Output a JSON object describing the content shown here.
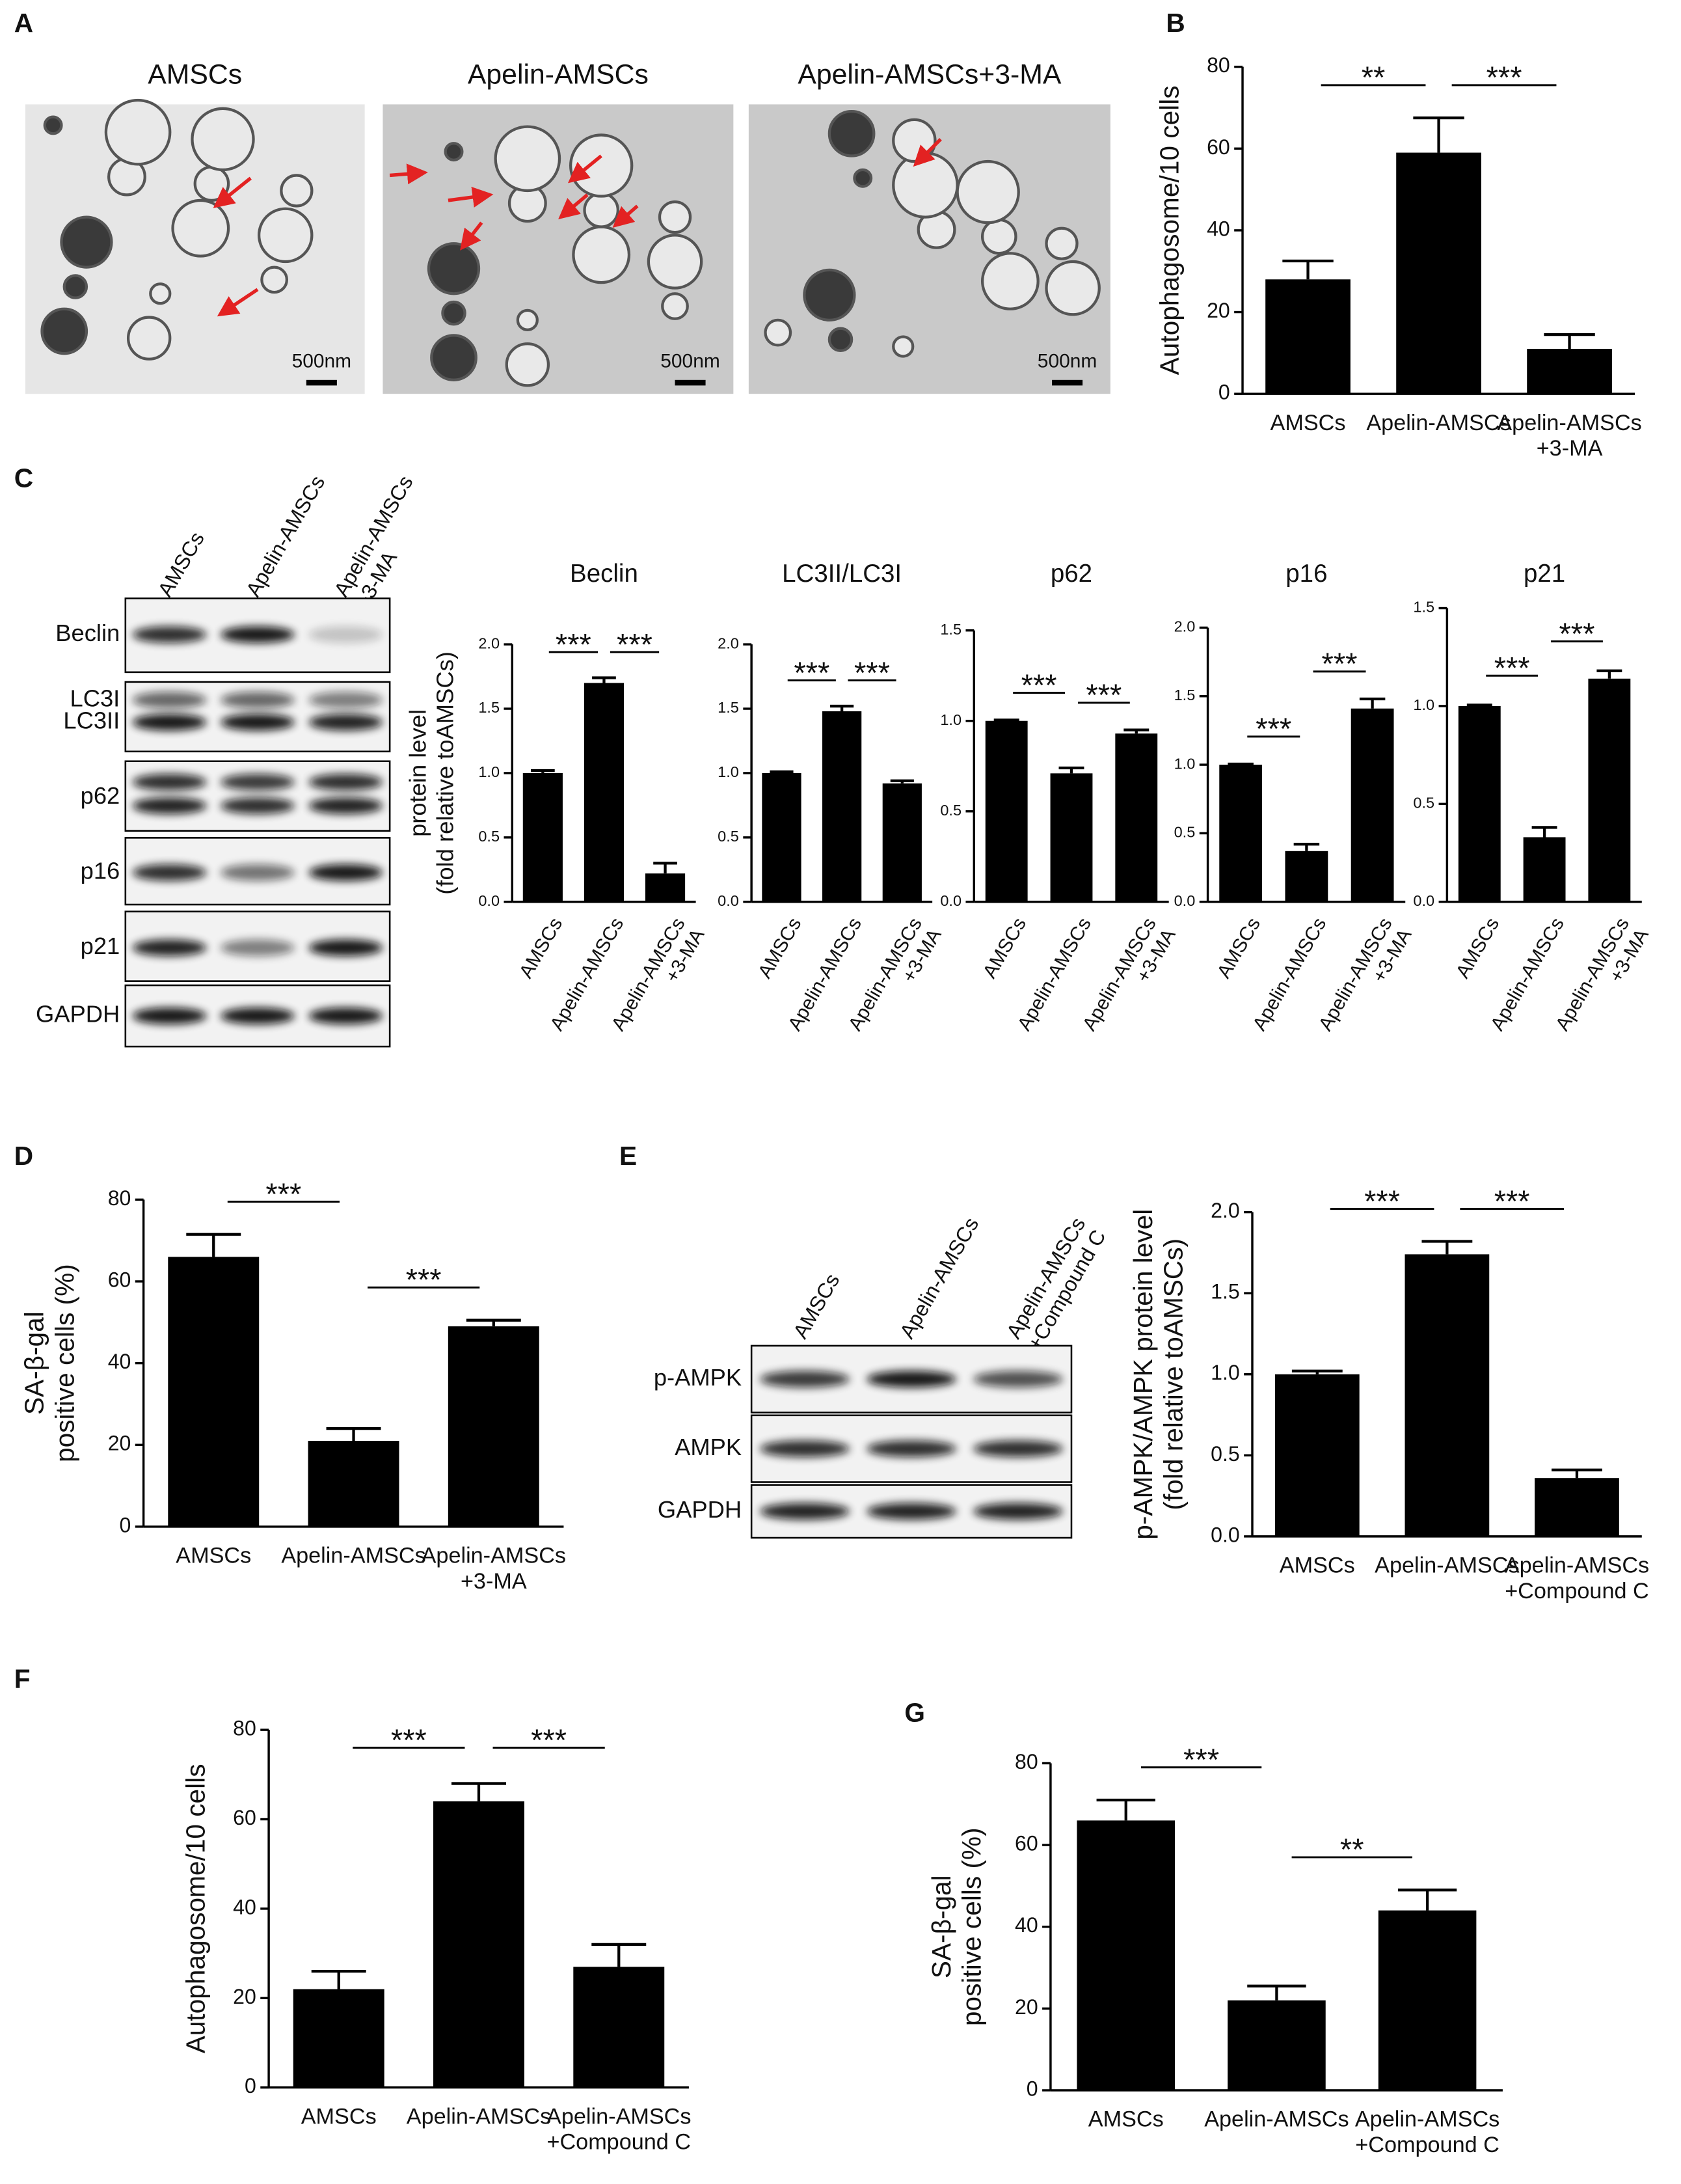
{
  "panel_labels": [
    "A",
    "B",
    "C",
    "D",
    "E",
    "F",
    "G"
  ],
  "micrographs": {
    "titles": [
      "AMSCs",
      "Apelin-AMSCs",
      "Apelin-AMSCs+3-MA"
    ],
    "scale_bar": "500nm"
  },
  "blot_c": {
    "lanes": [
      "AMSCs",
      "Apelin-AMSCs",
      "Apelin-AMSCs\n+3-MA"
    ],
    "rows": [
      "Beclin",
      "LC3I",
      "LC3II",
      "p62",
      "p16",
      "p21",
      "GAPDH"
    ]
  },
  "blot_e": {
    "lanes": [
      "AMSCs",
      "Apelin-AMSCs",
      "Apelin-AMSCs\n+Compound C"
    ],
    "rows": [
      "p-AMPK",
      "AMPK",
      "GAPDH"
    ]
  },
  "chart_data": [
    {
      "type": "bar",
      "ylabel": "Autophagosome/10 cells",
      "categories": [
        "AMSCs",
        "Apelin-AMSCs",
        "Apelin-AMSCs\n+3-MA"
      ],
      "values": [
        28,
        59,
        11
      ],
      "errors": [
        4.5,
        8.5,
        3.5
      ],
      "color": "#000000",
      "ylim": [
        0,
        80
      ],
      "yticks": [
        0,
        20,
        40,
        60,
        80
      ],
      "annotations": [
        "**",
        "***"
      ]
    },
    {
      "type": "bar",
      "title": "Beclin",
      "ylabel": "protein level\n(fold relative toAMSCs)",
      "categories": [
        "AMSCs",
        "Apelin-AMSCs",
        "Apelin-AMSCs\n+3-MA"
      ],
      "values": [
        1.0,
        1.7,
        0.22
      ],
      "errors": [
        0.02,
        0.04,
        0.08
      ],
      "color": "#000000",
      "ylim": [
        0,
        2
      ],
      "yticks": [
        {
          "value": 0,
          "label": "0.0"
        },
        {
          "value": 0.5,
          "label": "0.5"
        },
        {
          "value": 1,
          "label": "1.0"
        },
        {
          "value": 1.5,
          "label": "1.5"
        },
        {
          "value": 2,
          "label": "2.0"
        }
      ],
      "annotations": [
        "***",
        "***"
      ]
    },
    {
      "type": "bar",
      "title": "LC3II/LC3I",
      "categories": [
        "AMSCs",
        "Apelin-AMSCs",
        "Apelin-AMSCs\n+3-MA"
      ],
      "values": [
        1.0,
        1.48,
        0.92
      ],
      "errors": [
        0.01,
        0.04,
        0.02
      ],
      "color": "#000000",
      "ylim": [
        0,
        2
      ],
      "yticks": [
        {
          "value": 0,
          "label": "0.0"
        },
        {
          "value": 0.5,
          "label": "0.5"
        },
        {
          "value": 1,
          "label": "1.0"
        },
        {
          "value": 1.5,
          "label": "1.5"
        },
        {
          "value": 2,
          "label": "2.0"
        }
      ],
      "annotations": [
        "***",
        "***"
      ]
    },
    {
      "type": "bar",
      "title": "p62",
      "categories": [
        "AMSCs",
        "Apelin-AMSCs",
        "Apelin-AMSCs\n+3-MA"
      ],
      "values": [
        1.0,
        0.71,
        0.93
      ],
      "errors": [
        0.005,
        0.03,
        0.02
      ],
      "color": "#000000",
      "ylim": [
        0,
        1.5
      ],
      "yticks": [
        {
          "value": 0,
          "label": "0.0"
        },
        {
          "value": 0.5,
          "label": "0.5"
        },
        {
          "value": 1,
          "label": "1.0"
        },
        {
          "value": 1.5,
          "label": "1.5"
        }
      ],
      "annotations": [
        "***",
        "***"
      ]
    },
    {
      "type": "bar",
      "title": "p16",
      "categories": [
        "AMSCs",
        "Apelin-AMSCs",
        "Apelin-AMSCs\n+3-MA"
      ],
      "values": [
        1.0,
        0.37,
        1.41
      ],
      "errors": [
        0.005,
        0.05,
        0.07
      ],
      "color": "#000000",
      "ylim": [
        0,
        2
      ],
      "yticks": [
        {
          "value": 0,
          "label": "0.0"
        },
        {
          "value": 0.5,
          "label": "0.5"
        },
        {
          "value": 1,
          "label": "1.0"
        },
        {
          "value": 1.5,
          "label": "1.5"
        },
        {
          "value": 2,
          "label": "2.0"
        }
      ],
      "annotations": [
        "***",
        "***"
      ]
    },
    {
      "type": "bar",
      "title": "p21",
      "categories": [
        "AMSCs",
        "Apelin-AMSCs",
        "Apelin-AMSCs\n+3-MA"
      ],
      "values": [
        1.0,
        0.33,
        1.14
      ],
      "errors": [
        0.005,
        0.05,
        0.04
      ],
      "color": "#000000",
      "ylim": [
        0,
        1.5
      ],
      "yticks": [
        {
          "value": 0,
          "label": "0.0"
        },
        {
          "value": 0.5,
          "label": "0.5"
        },
        {
          "value": 1,
          "label": "1.0"
        },
        {
          "value": 1.5,
          "label": "1.5"
        }
      ],
      "annotations": [
        "***",
        "***"
      ]
    },
    {
      "type": "bar",
      "ylabel": "SA-β-gal\npositive cells (%)",
      "categories": [
        "AMSCs",
        "Apelin-AMSCs",
        "Apelin-AMSCs\n+3-MA"
      ],
      "values": [
        66,
        21,
        49
      ],
      "errors": [
        5.5,
        3,
        1.5
      ],
      "color": "#000000",
      "ylim": [
        0,
        80
      ],
      "yticks": [
        0,
        20,
        40,
        60,
        80
      ],
      "annotations": [
        "***",
        "***"
      ]
    },
    {
      "type": "bar",
      "ylabel": "p-AMPK/AMPK protein level\n(fold relative toAMSCs)",
      "categories": [
        "AMSCs",
        "Apelin-AMSCs",
        "Apelin-AMSCs\n+Compound C"
      ],
      "values": [
        1.0,
        1.74,
        0.36
      ],
      "errors": [
        0.02,
        0.08,
        0.05
      ],
      "color": "#000000",
      "ylim": [
        0,
        2
      ],
      "yticks": [
        {
          "value": 0,
          "label": "0.0"
        },
        {
          "value": 0.5,
          "label": "0.5"
        },
        {
          "value": 1,
          "label": "1.0"
        },
        {
          "value": 1.5,
          "label": "1.5"
        },
        {
          "value": 2,
          "label": "2.0"
        }
      ],
      "annotations": [
        "***",
        "***"
      ]
    },
    {
      "type": "bar",
      "ylabel": "Autophagosome/10 cells",
      "categories": [
        "AMSCs",
        "Apelin-AMSCs",
        "Apelin-AMSCs\n+Compound C"
      ],
      "values": [
        22,
        64,
        27
      ],
      "errors": [
        4,
        4,
        5
      ],
      "color": "#000000",
      "ylim": [
        0,
        80
      ],
      "yticks": [
        0,
        20,
        40,
        60,
        80
      ],
      "annotations": [
        "***",
        "***"
      ]
    },
    {
      "type": "bar",
      "ylabel": "SA-β-gal\npositive cells (%)",
      "categories": [
        "AMSCs",
        "Apelin-AMSCs",
        "Apelin-AMSCs\n+Compound C"
      ],
      "values": [
        66,
        22,
        44
      ],
      "errors": [
        5,
        3.5,
        5
      ],
      "color": "#000000",
      "ylim": [
        0,
        80
      ],
      "yticks": [
        0,
        20,
        40,
        60,
        80
      ],
      "annotations": [
        "***",
        "**"
      ]
    }
  ]
}
